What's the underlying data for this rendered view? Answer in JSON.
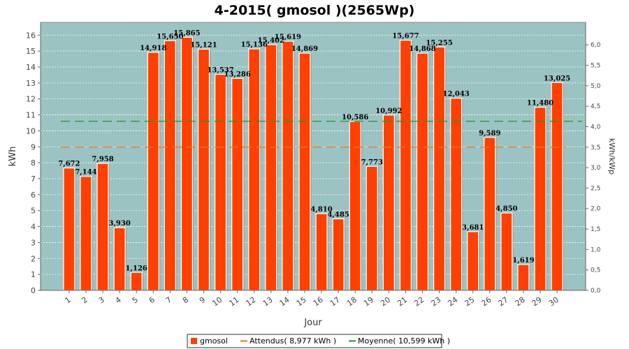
{
  "chart_data": {
    "type": "bar",
    "title": "4-2015( gmosol )(2565Wp)",
    "xlabel": "Jour",
    "ylabel": "kWh",
    "ylabel_right": "kWh/kWp",
    "ylim": [
      0,
      16.8
    ],
    "ylim_right": [
      0,
      6.55
    ],
    "yticks": [
      "0",
      "1",
      "2",
      "3",
      "4",
      "5",
      "6",
      "7",
      "8",
      "9",
      "10",
      "11",
      "12",
      "13",
      "14",
      "15",
      "16"
    ],
    "yticks_right": [
      "0,0",
      "0,5",
      "1,0",
      "1,5",
      "2,0",
      "2,5",
      "3,0",
      "3,5",
      "4,0",
      "4,5",
      "5,0",
      "5,5",
      "6,0"
    ],
    "grid": true,
    "legend_position": "bottom",
    "categories": [
      "1",
      "2",
      "3",
      "4",
      "5",
      "6",
      "7",
      "8",
      "9",
      "10",
      "11",
      "12",
      "13",
      "14",
      "15",
      "16",
      "17",
      "18",
      "19",
      "20",
      "21",
      "22",
      "23",
      "24",
      "25",
      "26",
      "27",
      "28",
      "29",
      "30"
    ],
    "series": [
      {
        "name": "gmosol",
        "color": "#ff4000",
        "values": [
          7.672,
          7.144,
          7.958,
          3.93,
          1.126,
          14.918,
          15.65,
          15.865,
          15.121,
          13.537,
          13.286,
          15.136,
          15.402,
          15.619,
          14.869,
          4.81,
          4.485,
          10.586,
          7.773,
          10.992,
          15.677,
          14.868,
          15.255,
          12.043,
          3.681,
          9.589,
          4.85,
          1.619,
          11.48,
          13.025
        ],
        "labels": [
          "7,672",
          "7,144",
          "7,958",
          "3,930",
          "1,126",
          "14,918",
          "15,650",
          "15,865",
          "15,121",
          "13,537",
          "13,286",
          "15,136",
          "15,402",
          "15,619",
          "14,869",
          "4,810",
          "4,485",
          "10,586",
          "7,773",
          "10,992",
          "15,677",
          "14,868",
          "15,255",
          "12,043",
          "3,681",
          "9,589",
          "4,850",
          "1,619",
          "11,480",
          "13,025"
        ]
      }
    ],
    "reference_lines": [
      {
        "name": "Attendus( 8,977 kWh )",
        "value": 8.977,
        "color": "#e8781c",
        "x_from": 0,
        "x_to": 29
      },
      {
        "name": "Moyenne( 10,599 kWh )",
        "value": 10.599,
        "color": "#1a9a1a",
        "x_from": 0,
        "x_to": 30
      }
    ],
    "legend": [
      "gmosol",
      "Attendus( 8,977 kWh )",
      "Moyenne( 10,599 kWh )"
    ]
  }
}
